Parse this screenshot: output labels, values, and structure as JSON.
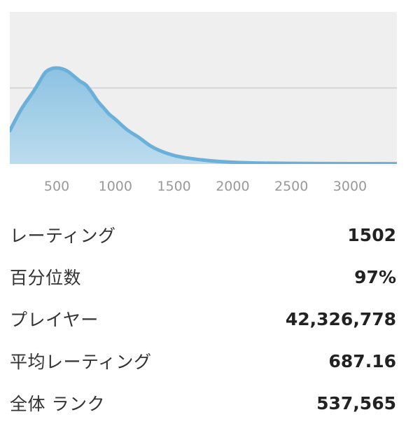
{
  "chart_data": {
    "type": "area",
    "x": [
      100,
      200,
      300,
      350,
      400,
      450,
      500,
      550,
      600,
      650,
      700,
      750,
      800,
      850,
      900,
      950,
      1000,
      1100,
      1200,
      1300,
      1400,
      1500,
      1600,
      1800,
      2000,
      2200,
      2500,
      3000,
      3400
    ],
    "y": [
      0.35,
      0.58,
      0.76,
      0.86,
      0.96,
      1.0,
      1.01,
      1.0,
      0.97,
      0.92,
      0.87,
      0.83,
      0.75,
      0.66,
      0.59,
      0.52,
      0.47,
      0.36,
      0.28,
      0.19,
      0.13,
      0.09,
      0.065,
      0.035,
      0.018,
      0.01,
      0.006,
      0.004,
      0.003
    ],
    "xticks": [
      500,
      1000,
      1500,
      2000,
      2500,
      3000
    ],
    "tick_labels": [
      "500",
      "1000",
      "1500",
      "2000",
      "2500",
      "3000"
    ],
    "xlim": [
      100,
      3400
    ],
    "ylim": [
      0,
      1.6
    ],
    "grid_y": [
      0.8
    ],
    "line_color": "#6ab0d8",
    "fill_top_color": "#8cc2e2",
    "fill_bottom_color": "#bcdcee",
    "background": "#efefef"
  },
  "stats": [
    {
      "label": "レーティング",
      "value": "1502"
    },
    {
      "label": "百分位数",
      "value": "97%"
    },
    {
      "label": "プレイヤー",
      "value": "42,326,778"
    },
    {
      "label": "平均レーティング",
      "value": "687.16"
    },
    {
      "label": "全体 ランク",
      "value": "537,565"
    }
  ]
}
